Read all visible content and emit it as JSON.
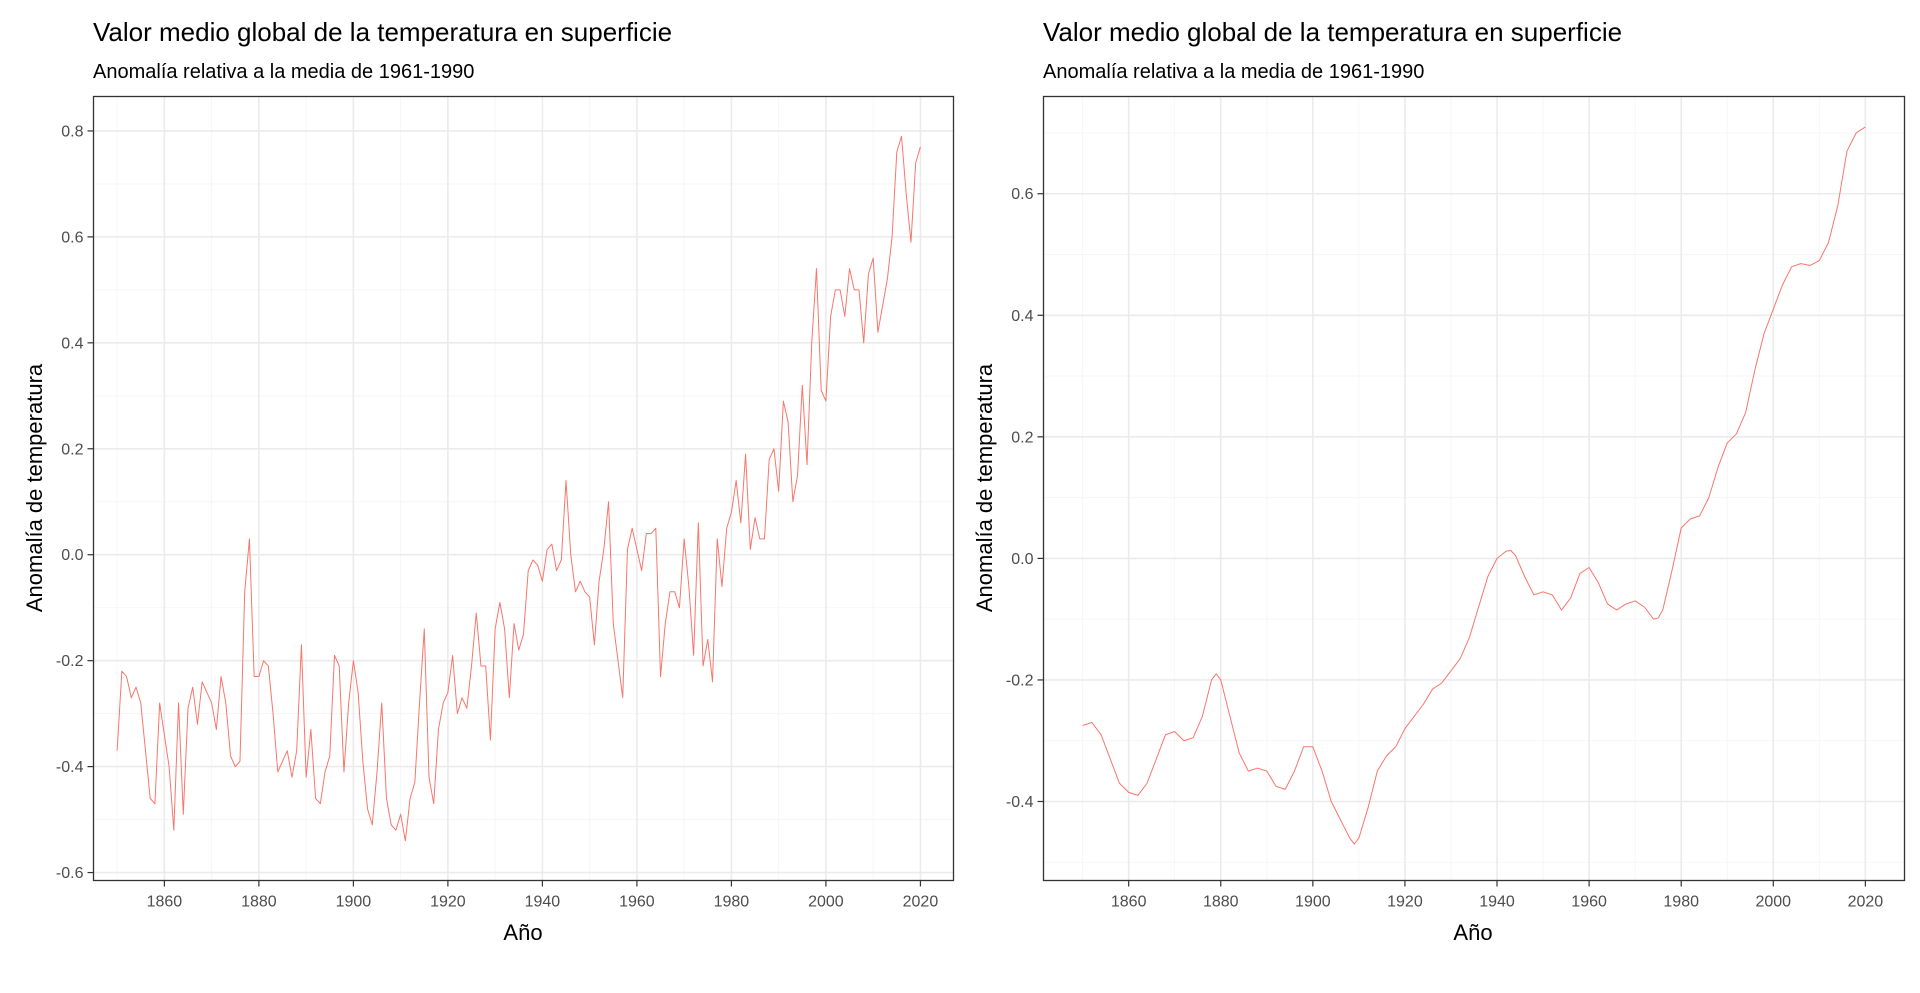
{
  "chart_data": [
    {
      "type": "line",
      "title": "Valor medio global de la temperatura en superficie",
      "subtitle": "Anomalía relativa a la media de 1961-1990",
      "xlabel": "Año",
      "ylabel": "Anomalía de temperatura",
      "xlim": [
        1845,
        2027
      ],
      "ylim": [
        -0.615,
        0.865
      ],
      "x_ticks": [
        1860,
        1880,
        1900,
        1920,
        1940,
        1960,
        1980,
        2000,
        2020
      ],
      "x_tick_labels": [
        "1860",
        "1880",
        "1900",
        "1920",
        "1940",
        "1960",
        "1980",
        "2000",
        "2020"
      ],
      "y_ticks": [
        -0.6,
        -0.4,
        -0.2,
        0.0,
        0.2,
        0.4,
        0.6,
        0.8
      ],
      "y_tick_labels": [
        "-0.6",
        "-0.4",
        "-0.2",
        "0.0",
        "0.2",
        "0.4",
        "0.6",
        "0.8"
      ],
      "grid": true,
      "line_color": "#f8766d",
      "series": [
        {
          "x": [
            1850,
            1851,
            1852,
            1853,
            1854,
            1855,
            1856,
            1857,
            1858,
            1859,
            1860,
            1861,
            1862,
            1863,
            1864,
            1865,
            1866,
            1867,
            1868,
            1869,
            1870,
            1871,
            1872,
            1873,
            1874,
            1875,
            1876,
            1877,
            1878,
            1879,
            1880,
            1881,
            1882,
            1883,
            1884,
            1885,
            1886,
            1887,
            1888,
            1889,
            1890,
            1891,
            1892,
            1893,
            1894,
            1895,
            1896,
            1897,
            1898,
            1899,
            1900,
            1901,
            1902,
            1903,
            1904,
            1905,
            1906,
            1907,
            1908,
            1909,
            1910,
            1911,
            1912,
            1913,
            1914,
            1915,
            1916,
            1917,
            1918,
            1919,
            1920,
            1921,
            1922,
            1923,
            1924,
            1925,
            1926,
            1927,
            1928,
            1929,
            1930,
            1931,
            1932,
            1933,
            1934,
            1935,
            1936,
            1937,
            1938,
            1939,
            1940,
            1941,
            1942,
            1943,
            1944,
            1945,
            1946,
            1947,
            1948,
            1949,
            1950,
            1951,
            1952,
            1953,
            1954,
            1955,
            1956,
            1957,
            1958,
            1959,
            1960,
            1961,
            1962,
            1963,
            1964,
            1965,
            1966,
            1967,
            1968,
            1969,
            1970,
            1971,
            1972,
            1973,
            1974,
            1975,
            1976,
            1977,
            1978,
            1979,
            1980,
            1981,
            1982,
            1983,
            1984,
            1985,
            1986,
            1987,
            1988,
            1989,
            1990,
            1991,
            1992,
            1993,
            1994,
            1995,
            1996,
            1997,
            1998,
            1999,
            2000,
            2001,
            2002,
            2003,
            2004,
            2005,
            2006,
            2007,
            2008,
            2009,
            2010,
            2011,
            2012,
            2013,
            2014,
            2015,
            2016,
            2017,
            2018,
            2019,
            2020
          ],
          "y": [
            -0.37,
            -0.22,
            -0.23,
            -0.27,
            -0.25,
            -0.28,
            -0.37,
            -0.46,
            -0.47,
            -0.28,
            -0.34,
            -0.4,
            -0.52,
            -0.28,
            -0.49,
            -0.29,
            -0.25,
            -0.32,
            -0.24,
            -0.26,
            -0.28,
            -0.33,
            -0.23,
            -0.28,
            -0.38,
            -0.4,
            -0.39,
            -0.07,
            0.03,
            -0.23,
            -0.23,
            -0.2,
            -0.21,
            -0.3,
            -0.41,
            -0.39,
            -0.37,
            -0.42,
            -0.37,
            -0.17,
            -0.42,
            -0.33,
            -0.46,
            -0.47,
            -0.41,
            -0.38,
            -0.19,
            -0.21,
            -0.41,
            -0.28,
            -0.2,
            -0.26,
            -0.39,
            -0.48,
            -0.51,
            -0.41,
            -0.28,
            -0.46,
            -0.51,
            -0.52,
            -0.49,
            -0.54,
            -0.46,
            -0.43,
            -0.28,
            -0.14,
            -0.42,
            -0.47,
            -0.33,
            -0.28,
            -0.26,
            -0.19,
            -0.3,
            -0.27,
            -0.29,
            -0.21,
            -0.11,
            -0.21,
            -0.21,
            -0.35,
            -0.14,
            -0.09,
            -0.14,
            -0.27,
            -0.13,
            -0.18,
            -0.15,
            -0.03,
            -0.01,
            -0.02,
            -0.05,
            0.01,
            0.02,
            -0.03,
            -0.01,
            0.14,
            0.0,
            -0.07,
            -0.05,
            -0.07,
            -0.08,
            -0.17,
            -0.05,
            0.01,
            0.1,
            -0.13,
            -0.2,
            -0.27,
            0.01,
            0.05,
            0.01,
            -0.03,
            0.04,
            0.04,
            0.05,
            -0.23,
            -0.13,
            -0.07,
            -0.07,
            -0.1,
            0.03,
            -0.06,
            -0.19,
            0.06,
            -0.21,
            -0.16,
            -0.24,
            0.03,
            -0.06,
            0.05,
            0.08,
            0.14,
            0.06,
            0.19,
            0.01,
            0.07,
            0.03,
            0.03,
            0.18,
            0.2,
            0.12,
            0.29,
            0.25,
            0.1,
            0.15,
            0.32,
            0.17,
            0.4,
            0.54,
            0.31,
            0.29,
            0.45,
            0.5,
            0.5,
            0.45,
            0.54,
            0.5,
            0.5,
            0.4,
            0.53,
            0.56,
            0.42,
            0.47,
            0.52,
            0.6,
            0.76,
            0.79,
            0.68,
            0.59,
            0.74,
            0.77
          ]
        }
      ]
    },
    {
      "type": "line",
      "title": "Valor medio global de la temperatura en superficie",
      "subtitle": "Anomalía relativa a la media de 1961-1990",
      "xlabel": "Año",
      "ylabel": "Anomalía de temperatura",
      "xlim": [
        1841.5,
        2028.5
      ],
      "ylim": [
        -0.53,
        0.76
      ],
      "x_ticks": [
        1860,
        1880,
        1900,
        1920,
        1940,
        1960,
        1980,
        2000,
        2020
      ],
      "x_tick_labels": [
        "1860",
        "1880",
        "1900",
        "1920",
        "1940",
        "1960",
        "1980",
        "2000",
        "2020"
      ],
      "y_ticks": [
        -0.4,
        -0.2,
        0.0,
        0.2,
        0.4,
        0.6
      ],
      "y_tick_labels": [
        "-0.4",
        "-0.2",
        "0.0",
        "0.2",
        "0.4",
        "0.6"
      ],
      "grid": true,
      "line_color": "#f8766d",
      "series": [
        {
          "x": [
            1850,
            1852,
            1854,
            1856,
            1858,
            1860,
            1862,
            1864,
            1866,
            1868,
            1870,
            1872,
            1874,
            1876,
            1878,
            1879,
            1880,
            1882,
            1884,
            1886,
            1888,
            1890,
            1892,
            1894,
            1896,
            1898,
            1900,
            1902,
            1904,
            1906,
            1908,
            1909,
            1910,
            1912,
            1914,
            1916,
            1918,
            1920,
            1922,
            1924,
            1926,
            1928,
            1930,
            1932,
            1934,
            1936,
            1938,
            1940,
            1942,
            1943,
            1944,
            1946,
            1948,
            1950,
            1952,
            1954,
            1956,
            1958,
            1960,
            1962,
            1964,
            1966,
            1968,
            1970,
            1972,
            1974,
            1975,
            1976,
            1978,
            1980,
            1982,
            1984,
            1986,
            1988,
            1990,
            1992,
            1994,
            1996,
            1998,
            2000,
            2002,
            2004,
            2006,
            2008,
            2010,
            2012,
            2014,
            2016,
            2018,
            2020
          ],
          "y": [
            -0.275,
            -0.27,
            -0.29,
            -0.33,
            -0.37,
            -0.385,
            -0.39,
            -0.37,
            -0.33,
            -0.29,
            -0.285,
            -0.3,
            -0.295,
            -0.26,
            -0.2,
            -0.19,
            -0.2,
            -0.26,
            -0.32,
            -0.35,
            -0.345,
            -0.35,
            -0.375,
            -0.38,
            -0.35,
            -0.31,
            -0.31,
            -0.35,
            -0.4,
            -0.43,
            -0.46,
            -0.47,
            -0.46,
            -0.41,
            -0.35,
            -0.325,
            -0.31,
            -0.28,
            -0.26,
            -0.24,
            -0.215,
            -0.205,
            -0.185,
            -0.165,
            -0.13,
            -0.08,
            -0.03,
            0.0,
            0.012,
            0.013,
            0.005,
            -0.03,
            -0.06,
            -0.055,
            -0.06,
            -0.085,
            -0.065,
            -0.025,
            -0.015,
            -0.04,
            -0.075,
            -0.085,
            -0.075,
            -0.07,
            -0.08,
            -0.1,
            -0.098,
            -0.085,
            -0.02,
            0.05,
            0.065,
            0.07,
            0.1,
            0.15,
            0.19,
            0.205,
            0.24,
            0.31,
            0.37,
            0.41,
            0.45,
            0.48,
            0.485,
            0.482,
            0.49,
            0.52,
            0.58,
            0.67,
            0.7,
            0.71
          ]
        }
      ]
    }
  ]
}
